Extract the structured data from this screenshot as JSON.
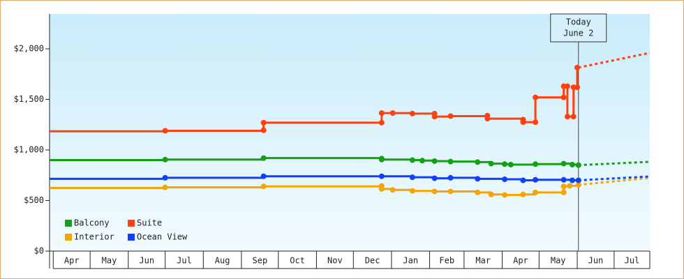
{
  "chart_data": {
    "type": "step",
    "xlim": [
      -3,
      485
    ],
    "ylim": [
      0,
      2345
    ],
    "xticks": [
      {
        "value": 0,
        "label": "Apr"
      },
      {
        "value": 30,
        "label": "May"
      },
      {
        "value": 61,
        "label": "Jun"
      },
      {
        "value": 91,
        "label": "Jul"
      },
      {
        "value": 122,
        "label": "Aug"
      },
      {
        "value": 153,
        "label": "Sep"
      },
      {
        "value": 183,
        "label": "Oct"
      },
      {
        "value": 214,
        "label": "Nov"
      },
      {
        "value": 244,
        "label": "Dec"
      },
      {
        "value": 275,
        "label": "Jan"
      },
      {
        "value": 306,
        "label": "Feb"
      },
      {
        "value": 334,
        "label": "Mar"
      },
      {
        "value": 365,
        "label": "Apr"
      },
      {
        "value": 395,
        "label": "May"
      },
      {
        "value": 426,
        "label": "Jun"
      },
      {
        "value": 456,
        "label": "Jul"
      }
    ],
    "yticks": [
      {
        "value": 0,
        "label": "$0"
      },
      {
        "value": 500,
        "label": "$500"
      },
      {
        "value": 1000,
        "label": "$1,000"
      },
      {
        "value": 1500,
        "label": "$1,500"
      },
      {
        "value": 2000,
        "label": "$2,000"
      }
    ],
    "annotation": {
      "lines": [
        "Today",
        "June 2"
      ],
      "x": 427
    },
    "series": [
      {
        "name": "Balcony",
        "color": "#13a013",
        "x": [
          -3,
          91,
          171,
          267,
          267,
          292,
          300,
          310,
          323,
          345,
          356,
          367,
          372,
          392,
          415,
          422,
          427
        ],
        "values": [
          900,
          905,
          920,
          915,
          905,
          900,
          895,
          890,
          885,
          880,
          865,
          860,
          855,
          860,
          865,
          855,
          850
        ],
        "projection": {
          "x": [
            427,
            485
          ],
          "values": [
            850,
            883
          ]
        }
      },
      {
        "name": "Suite",
        "color": "#ff4010",
        "x": [
          -3,
          91,
          171,
          171,
          267,
          267,
          276,
          292,
          310,
          310,
          323,
          353,
          353,
          382,
          382,
          392,
          392,
          415,
          415,
          418,
          418,
          423,
          423,
          426,
          426
        ],
        "values": [
          1185,
          1190,
          1195,
          1270,
          1270,
          1365,
          1365,
          1360,
          1360,
          1330,
          1335,
          1340,
          1310,
          1300,
          1275,
          1275,
          1520,
          1520,
          1630,
          1630,
          1330,
          1330,
          1620,
          1620,
          1815
        ],
        "projection": {
          "x": [
            427,
            485
          ],
          "values": [
            1815,
            1960
          ]
        }
      },
      {
        "name": "Interior",
        "color": "#f8a400",
        "x": [
          -3,
          91,
          171,
          267,
          267,
          276,
          292,
          310,
          323,
          345,
          356,
          367,
          382,
          392,
          415,
          415,
          420,
          427
        ],
        "values": [
          625,
          630,
          640,
          645,
          615,
          605,
          595,
          590,
          590,
          580,
          560,
          555,
          560,
          580,
          580,
          640,
          645,
          655
        ],
        "projection": {
          "x": [
            427,
            485
          ],
          "values": [
            655,
            724
          ]
        }
      },
      {
        "name": "Ocean View",
        "color": "#1040ff",
        "x": [
          -3,
          91,
          171,
          267,
          292,
          310,
          323,
          345,
          367,
          382,
          392,
          415,
          422,
          427
        ],
        "values": [
          715,
          725,
          740,
          740,
          730,
          720,
          725,
          715,
          710,
          700,
          705,
          705,
          700,
          700
        ],
        "projection": {
          "x": [
            427,
            485
          ],
          "values": [
            700,
            738
          ]
        }
      }
    ]
  }
}
